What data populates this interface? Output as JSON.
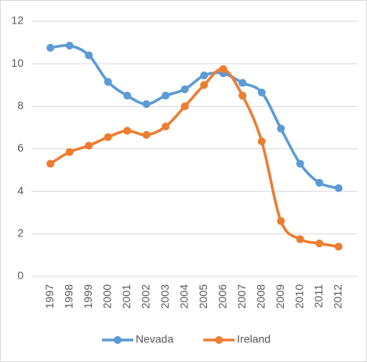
{
  "chart_data": {
    "type": "line",
    "categories": [
      "1997",
      "1998",
      "1999",
      "2000",
      "2001",
      "2002",
      "2003",
      "2004",
      "2005",
      "2006",
      "2007",
      "2008",
      "2009",
      "2010",
      "2011",
      "2012"
    ],
    "series": [
      {
        "name": "Nevada",
        "color": "#5b9bd5",
        "values": [
          10.75,
          10.85,
          10.4,
          9.15,
          8.5,
          8.1,
          8.5,
          8.8,
          9.45,
          9.55,
          9.1,
          8.65,
          6.95,
          5.3,
          4.4,
          4.15
        ]
      },
      {
        "name": "Ireland",
        "color": "#ed7d31",
        "values": [
          5.3,
          5.85,
          6.15,
          6.55,
          6.85,
          6.65,
          7.05,
          8.0,
          9.0,
          9.75,
          8.5,
          6.35,
          2.6,
          1.75,
          1.55,
          1.4
        ]
      }
    ],
    "ylim": [
      0,
      12
    ],
    "yticks": [
      0,
      2,
      4,
      6,
      8,
      10,
      12
    ],
    "grid": true,
    "legend": "bottom"
  }
}
